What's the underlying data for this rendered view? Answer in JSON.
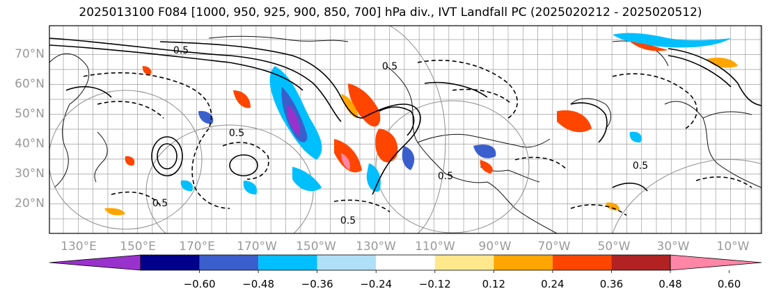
{
  "title": "2025013100 F084 [1000, 950, 925, 900, 850, 700] hPa div., IVT Landfall PC (2025020212 - 2025020512)",
  "map": {
    "lat_labels": [
      "70°N",
      "60°N",
      "50°N",
      "40°N",
      "30°N",
      "20°N"
    ],
    "lon_labels": [
      "130°E",
      "150°E",
      "170°E",
      "170°W",
      "150°W",
      "130°W",
      "110°W",
      "90°W",
      "70°W",
      "50°W",
      "30°W",
      "10°W"
    ],
    "contour_labels": [
      "0.5",
      "0.5",
      "0.5",
      "0.5",
      "0.5",
      "0.5",
      "0.5"
    ]
  },
  "colorbar": {
    "colors": [
      "#9932cc",
      "#00008b",
      "#3a5fcd",
      "#00bfff",
      "#b0e0f8",
      "#ffffff",
      "#ffe88c",
      "#ffa500",
      "#ff4500",
      "#b22222",
      "#ff86a6"
    ],
    "tick_labels": [
      "−0.60",
      "−0.48",
      "−0.36",
      "−0.24",
      "−0.12",
      "0.12",
      "0.24",
      "0.36",
      "0.48",
      "0.60"
    ]
  }
}
